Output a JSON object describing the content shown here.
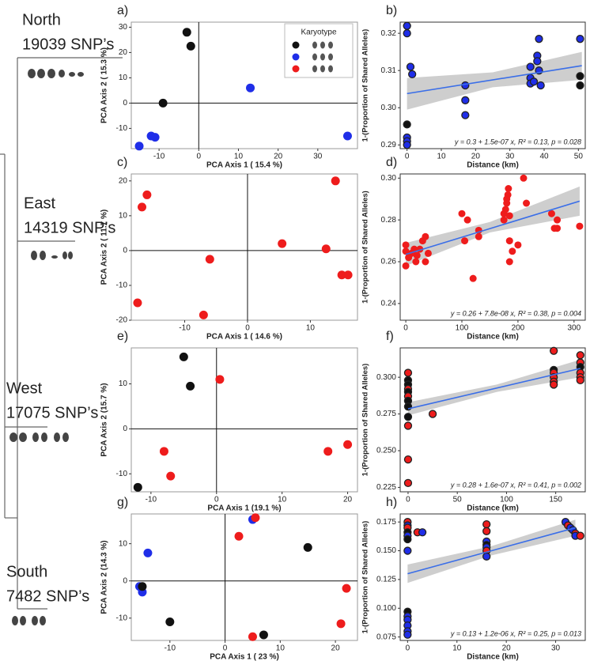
{
  "tree": [
    {
      "name": "North",
      "snps": "19039 SNP’s"
    },
    {
      "name": "East",
      "snps": "14319 SNP’s"
    },
    {
      "name": "West",
      "snps": "17075 SNP’s"
    },
    {
      "name": "South",
      "snps": "7482 SNP’s"
    }
  ],
  "chart_data": [
    {
      "type": "scatter",
      "label": "a)",
      "xlabel": "PCA Axis 1 ( 15.4 %)",
      "ylabel": "PCA Axis 2 ( 15.3 %)",
      "xlim": [
        -17,
        40
      ],
      "ylim": [
        -18,
        32
      ],
      "xticks": [
        -10,
        0,
        10,
        20,
        30
      ],
      "yticks": [
        -10,
        0,
        10,
        20,
        30
      ],
      "zero_lines": true,
      "x": [
        -3,
        -2,
        -9,
        13,
        -12,
        -11,
        -15,
        37.5
      ],
      "y": [
        28,
        22.5,
        0,
        6,
        -13,
        -13.5,
        -17,
        -13
      ],
      "colors": [
        "#111111",
        "#111111",
        "#111111",
        "#1f2ee8",
        "#1f2ee8",
        "#1f2ee8",
        "#1f2ee8",
        "#1f2ee8"
      ],
      "legend": {
        "title": "Karyotype",
        "colors": [
          "#111111",
          "#1f2ee8",
          "#ee1c1c"
        ]
      }
    },
    {
      "type": "scatter",
      "label": "b)",
      "xlabel": "Distance (km)",
      "ylabel": "1-(Proportion of Shared Alleles)",
      "xlim": [
        -2,
        52
      ],
      "ylim": [
        0.289,
        0.323
      ],
      "xticks": [
        0,
        10,
        20,
        30,
        40,
        50
      ],
      "yticks": [
        {
          "value": 0.29,
          "label": "0.29"
        },
        {
          "value": 0.3,
          "label": "0.30"
        },
        {
          "value": 0.31,
          "label": "0.31"
        },
        {
          "value": 0.32,
          "label": "0.32"
        }
      ],
      "edge": "#222222",
      "x": [
        0,
        0,
        0,
        0,
        0,
        0,
        1,
        1.5,
        17,
        17,
        17,
        36,
        36,
        36,
        37,
        38,
        38,
        38.5,
        38.5,
        39,
        50.5,
        50.5,
        50.5
      ],
      "y": [
        0.322,
        0.32,
        0.2955,
        0.292,
        0.291,
        0.29,
        0.311,
        0.309,
        0.306,
        0.302,
        0.298,
        0.311,
        0.308,
        0.3065,
        0.307,
        0.314,
        0.3125,
        0.3185,
        0.31,
        0.306,
        0.3185,
        0.3085,
        0.306
      ],
      "colors": [
        "#1f2ee8",
        "#1f2ee8",
        "#111111",
        "#1f2ee8",
        "#1f2ee8",
        "#1f2ee8",
        "#1f2ee8",
        "#1f2ee8",
        "#1f2ee8",
        "#1f2ee8",
        "#1f2ee8",
        "#1f2ee8",
        "#1f2ee8",
        "#1f2ee8",
        "#1f2ee8",
        "#1f2ee8",
        "#1f2ee8",
        "#1f2ee8",
        "#1f2ee8",
        "#1f2ee8",
        "#1f2ee8",
        "#111111",
        "#111111"
      ],
      "trend": {
        "x": [
          0,
          51
        ],
        "y": [
          0.3038,
          0.3113
        ],
        "color": "#3a6ee8"
      },
      "ci": {
        "x": [
          0,
          25,
          51
        ],
        "lower": [
          0.2995,
          0.3055,
          0.3075
        ],
        "upper": [
          0.308,
          0.3095,
          0.315
        ]
      },
      "annotation": "y = 0.3 + 1.5e-07 x,  R² = 0.13, p = 0.028"
    },
    {
      "type": "scatter",
      "label": "c)",
      "xlabel": "PCA Axis 1 ( 14.6 %)",
      "ylabel": "PCA Axis 2 ( 11.7 %)",
      "xlim": [
        -18.5,
        17.5
      ],
      "ylim": [
        -20,
        22
      ],
      "xticks": [
        -10,
        0,
        10
      ],
      "yticks": [
        -20,
        -10,
        0,
        10,
        20
      ],
      "zero_lines": true,
      "x": [
        -16,
        -16.8,
        -17.5,
        -6,
        -7,
        5.5,
        12.5,
        14,
        15,
        16
      ],
      "y": [
        16,
        12.5,
        -15,
        -2.5,
        -18.5,
        2,
        0.5,
        20,
        -7,
        -7
      ],
      "colors": [
        "#ee1c1c",
        "#ee1c1c",
        "#ee1c1c",
        "#ee1c1c",
        "#ee1c1c",
        "#ee1c1c",
        "#ee1c1c",
        "#ee1c1c",
        "#ee1c1c",
        "#ee1c1c"
      ]
    },
    {
      "type": "scatter",
      "label": "d)",
      "xlabel": "Distance (km)",
      "ylabel": "1-(Proportion of Shared Alleles)",
      "xlim": [
        -10,
        320
      ],
      "ylim": [
        0.232,
        0.302
      ],
      "xticks": [
        0,
        100,
        200,
        300
      ],
      "yticks": [
        {
          "value": 0.24,
          "label": "0.24"
        },
        {
          "value": 0.26,
          "label": "0.26"
        },
        {
          "value": 0.28,
          "label": "0.28"
        },
        {
          "value": 0.3,
          "label": "0.30"
        }
      ],
      "x": [
        0,
        0,
        0,
        5,
        10,
        15,
        18,
        20,
        25,
        30,
        35,
        35,
        40,
        100,
        105,
        110,
        120,
        130,
        130,
        175,
        175,
        178,
        180,
        180,
        182,
        183,
        185,
        185,
        185,
        190,
        200,
        210,
        215,
        260,
        265,
        270,
        270,
        310
      ],
      "y": [
        0.268,
        0.265,
        0.258,
        0.262,
        0.264,
        0.266,
        0.26,
        0.263,
        0.266,
        0.27,
        0.272,
        0.26,
        0.264,
        0.283,
        0.27,
        0.28,
        0.252,
        0.275,
        0.272,
        0.28,
        0.283,
        0.285,
        0.288,
        0.29,
        0.292,
        0.295,
        0.282,
        0.27,
        0.26,
        0.265,
        0.268,
        0.3,
        0.288,
        0.283,
        0.276,
        0.28,
        0.276,
        0.277
      ],
      "colors": [
        "#ee1c1c",
        "#ee1c1c",
        "#ee1c1c",
        "#ee1c1c",
        "#ee1c1c",
        "#ee1c1c",
        "#ee1c1c",
        "#ee1c1c",
        "#ee1c1c",
        "#ee1c1c",
        "#ee1c1c",
        "#ee1c1c",
        "#ee1c1c",
        "#ee1c1c",
        "#ee1c1c",
        "#ee1c1c",
        "#ee1c1c",
        "#ee1c1c",
        "#ee1c1c",
        "#ee1c1c",
        "#ee1c1c",
        "#ee1c1c",
        "#ee1c1c",
        "#ee1c1c",
        "#ee1c1c",
        "#ee1c1c",
        "#ee1c1c",
        "#ee1c1c",
        "#ee1c1c",
        "#ee1c1c",
        "#ee1c1c",
        "#ee1c1c",
        "#ee1c1c",
        "#ee1c1c",
        "#ee1c1c",
        "#ee1c1c",
        "#ee1c1c",
        "#ee1c1c"
      ],
      "trend": {
        "x": [
          0,
          310
        ],
        "y": [
          0.2635,
          0.289
        ],
        "color": "#3a6ee8"
      },
      "ci": {
        "x": [
          0,
          150,
          310
        ],
        "lower": [
          0.258,
          0.274,
          0.282
        ],
        "upper": [
          0.269,
          0.279,
          0.296
        ]
      },
      "annotation": "y = 0.26 + 7.8e-08 x,  R² = 0.38, p = 0.004"
    },
    {
      "type": "scatter",
      "label": "e)",
      "xlabel": "PCA Axis 1 (19.1 %)",
      "ylabel": "PCA Axis 2 (15.7 %)",
      "xlim": [
        -13,
        21.5
      ],
      "ylim": [
        -14,
        18
      ],
      "xticks": [
        -10,
        0,
        10,
        20
      ],
      "yticks": [
        -10,
        0,
        10
      ],
      "zero_lines": true,
      "x": [
        -5,
        -4,
        -12,
        0.5,
        -8,
        -7,
        17,
        20
      ],
      "y": [
        16,
        9.5,
        -13,
        11,
        -5,
        -10.5,
        -5,
        -3.5
      ],
      "colors": [
        "#111111",
        "#111111",
        "#111111",
        "#ee1c1c",
        "#ee1c1c",
        "#ee1c1c",
        "#ee1c1c",
        "#ee1c1c"
      ]
    },
    {
      "type": "scatter",
      "label": "f)",
      "xlabel": "Distance (km)",
      "ylabel": "1-(Proportion of Shared Alleles)",
      "xlim": [
        -8,
        180
      ],
      "ylim": [
        0.222,
        0.32
      ],
      "xticks": [
        0,
        50,
        100,
        150
      ],
      "yticks": [
        {
          "value": 0.225,
          "label": "0.225"
        },
        {
          "value": 0.25,
          "label": "0.250"
        },
        {
          "value": 0.275,
          "label": "0.275"
        },
        {
          "value": 0.3,
          "label": "0.300"
        }
      ],
      "edge": "#222222",
      "x": [
        0,
        0,
        0,
        0,
        0,
        0,
        0,
        0,
        0,
        0,
        0,
        0,
        25,
        148,
        148,
        148,
        148,
        148,
        148,
        175,
        175,
        175,
        175,
        175,
        175
      ],
      "y": [
        0.303,
        0.298,
        0.295,
        0.292,
        0.29,
        0.287,
        0.284,
        0.28,
        0.273,
        0.267,
        0.244,
        0.228,
        0.275,
        0.318,
        0.305,
        0.303,
        0.3,
        0.297,
        0.295,
        0.315,
        0.31,
        0.307,
        0.303,
        0.3,
        0.298
      ],
      "colors": [
        "#ee1c1c",
        "#111111",
        "#111111",
        "#ee1c1c",
        "#111111",
        "#ee1c1c",
        "#111111",
        "#111111",
        "#111111",
        "#ee1c1c",
        "#ee1c1c",
        "#ee1c1c",
        "#ee1c1c",
        "#ee1c1c",
        "#111111",
        "#ee1c1c",
        "#ee1c1c",
        "#ee1c1c",
        "#ee1c1c",
        "#ee1c1c",
        "#ee1c1c",
        "#111111",
        "#ee1c1c",
        "#ee1c1c",
        "#ee1c1c"
      ],
      "trend": {
        "x": [
          0,
          175
        ],
        "y": [
          0.2785,
          0.306
        ],
        "color": "#3a6ee8"
      },
      "ci": {
        "x": [
          0,
          90,
          175
        ],
        "lower": [
          0.274,
          0.29,
          0.3
        ],
        "upper": [
          0.283,
          0.295,
          0.312
        ]
      },
      "annotation": "y = 0.28 + 1.6e-07 x,  R² = 0.41, p = 0.002"
    },
    {
      "type": "scatter",
      "label": "g)",
      "xlabel": "PCA Axis 1 ( 23 %)",
      "ylabel": "PCA Axis 2 (14.3 %)",
      "xlim": [
        -17,
        24
      ],
      "ylim": [
        -16,
        18
      ],
      "xticks": [
        -10,
        0,
        10,
        20
      ],
      "yticks": [
        -10,
        0,
        10
      ],
      "zero_lines": true,
      "x": [
        -14,
        -15.5,
        -15,
        5,
        -15,
        -10,
        7,
        15,
        5.5,
        2.5,
        5,
        22,
        21
      ],
      "y": [
        7.5,
        -1.5,
        -3,
        16.5,
        -1.5,
        -11,
        -14.5,
        9,
        17,
        12,
        -15,
        -2,
        -11.5
      ],
      "colors": [
        "#1f2ee8",
        "#1f2ee8",
        "#1f2ee8",
        "#1f2ee8",
        "#111111",
        "#111111",
        "#111111",
        "#111111",
        "#ee1c1c",
        "#ee1c1c",
        "#ee1c1c",
        "#ee1c1c",
        "#ee1c1c"
      ]
    },
    {
      "type": "scatter",
      "label": "h)",
      "xlabel": "Distance (km)",
      "ylabel": "1-(Proportion of Shared Alleles)",
      "xlim": [
        -1.5,
        36
      ],
      "ylim": [
        0.072,
        0.182
      ],
      "xticks": [
        0,
        10,
        20,
        30
      ],
      "yticks": [
        {
          "value": 0.075,
          "label": "0.075"
        },
        {
          "value": 0.1,
          "label": "0.100"
        },
        {
          "value": 0.125,
          "label": "0.125"
        },
        {
          "value": 0.15,
          "label": "0.150"
        },
        {
          "value": 0.175,
          "label": "0.175"
        }
      ],
      "edge": "#222222",
      "x": [
        0,
        0,
        0,
        0,
        0,
        0,
        0,
        0,
        0,
        0,
        0,
        0,
        0,
        2,
        3,
        16,
        16,
        16,
        16,
        16,
        16,
        16,
        32,
        32.5,
        33,
        33.5,
        34,
        34,
        35
      ],
      "y": [
        0.175,
        0.172,
        0.17,
        0.166,
        0.163,
        0.16,
        0.15,
        0.097,
        0.093,
        0.09,
        0.085,
        0.08,
        0.077,
        0.166,
        0.166,
        0.173,
        0.167,
        0.158,
        0.155,
        0.153,
        0.15,
        0.145,
        0.175,
        0.172,
        0.17,
        0.168,
        0.165,
        0.163,
        0.163
      ],
      "colors": [
        "#ee1c1c",
        "#1f2ee8",
        "#ee1c1c",
        "#111111",
        "#1f2ee8",
        "#111111",
        "#1f2ee8",
        "#111111",
        "#1f2ee8",
        "#1f2ee8",
        "#1f2ee8",
        "#1f2ee8",
        "#1f2ee8",
        "#ee1c1c",
        "#1f2ee8",
        "#ee1c1c",
        "#ee1c1c",
        "#1f2ee8",
        "#111111",
        "#1f2ee8",
        "#ee1c1c",
        "#1f2ee8",
        "#1f2ee8",
        "#ee1c1c",
        "#1f2ee8",
        "#1f2ee8",
        "#ee1c1c",
        "#1f2ee8",
        "#ee1c1c"
      ],
      "trend": {
        "x": [
          0,
          34
        ],
        "y": [
          0.13,
          0.17
        ],
        "color": "#3a6ee8"
      },
      "ci": {
        "x": [
          0,
          17,
          34
        ],
        "lower": [
          0.122,
          0.146,
          0.163
        ],
        "upper": [
          0.138,
          0.154,
          0.177
        ]
      },
      "annotation": "y = 0.13 + 1.2e-06 x,  R² = 0.25, p = 0.013"
    }
  ]
}
